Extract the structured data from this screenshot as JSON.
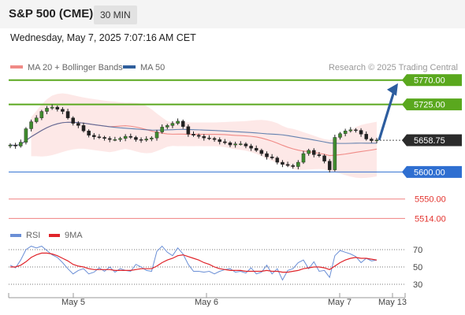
{
  "header": {
    "title": "S&P 500 (CME)",
    "timeframe": "30 MIN"
  },
  "timestamp": "Wednesday, May 7, 2025 7:07:16 AM CET",
  "legend": [
    {
      "label": "MA 20 + Bollinger Bands",
      "color": "#f08a86"
    },
    {
      "label": "MA 50",
      "color": "#2f5f9c"
    }
  ],
  "credit": "Research © 2025 Trading Central",
  "rsi_legend": [
    {
      "label": "RSI",
      "color": "#6b8fd6"
    },
    {
      "label": "9MA",
      "color": "#e0242a"
    }
  ],
  "colors": {
    "resistance": "#5aa81e",
    "support_main": "#2f6fd1",
    "support_minor": "#f08080",
    "current": "#2b2b2b",
    "arrow": "#2d5d9f"
  },
  "chart_data": [
    {
      "type": "candlestick",
      "ylim": [
        5500,
        5790
      ],
      "x": [
        "May 5",
        "May 6",
        "May 7",
        "May 13"
      ],
      "levels": [
        {
          "label": "5770.00",
          "value": 5770,
          "kind": "resistance"
        },
        {
          "label": "5725.00",
          "value": 5725,
          "kind": "resistance"
        },
        {
          "label": "5658.75",
          "value": 5658.75,
          "kind": "current"
        },
        {
          "label": "5600.00",
          "value": 5600,
          "kind": "support_main"
        },
        {
          "label": "5550.00",
          "value": 5550,
          "kind": "support_minor"
        },
        {
          "label": "5514.00",
          "value": 5514,
          "kind": "support_minor"
        }
      ],
      "closes": [
        5650,
        5648,
        5655,
        5680,
        5693,
        5700,
        5712,
        5718,
        5720,
        5716,
        5712,
        5700,
        5690,
        5686,
        5676,
        5668,
        5665,
        5664,
        5662,
        5660,
        5660,
        5662,
        5666,
        5664,
        5660,
        5659,
        5661,
        5663,
        5674,
        5683,
        5686,
        5690,
        5694,
        5684,
        5670,
        5668,
        5666,
        5663,
        5662,
        5660,
        5656,
        5654,
        5650,
        5652,
        5652,
        5648,
        5644,
        5640,
        5634,
        5628,
        5626,
        5618,
        5614,
        5612,
        5610,
        5618,
        5634,
        5640,
        5632,
        5630,
        5620,
        5604,
        5664,
        5671,
        5676,
        5678,
        5677,
        5670,
        5661,
        5658,
        5659
      ]
    },
    {
      "type": "line",
      "title": "RSI",
      "ylim": [
        20,
        80
      ],
      "ticks": [
        70,
        50,
        30
      ],
      "series": [
        {
          "name": "RSI",
          "values": [
            52,
            49,
            58,
            70,
            74,
            72,
            74,
            69,
            64,
            61,
            55,
            48,
            42,
            46,
            48,
            42,
            44,
            49,
            45,
            50,
            44,
            48,
            46,
            45,
            53,
            50,
            46,
            45,
            68,
            74,
            67,
            63,
            72,
            65,
            53,
            45,
            45,
            44,
            45,
            42,
            45,
            47,
            48,
            44,
            45,
            43,
            49,
            42,
            44,
            52,
            42,
            48,
            35,
            46,
            48,
            55,
            58,
            48,
            56,
            45,
            46,
            38,
            63,
            69,
            67,
            65,
            62,
            55,
            60,
            57,
            58
          ]
        },
        {
          "name": "9MA",
          "values": [
            50,
            50,
            52,
            56,
            61,
            64,
            66,
            66,
            65,
            63,
            60,
            57,
            53,
            51,
            50,
            48,
            47,
            47,
            47,
            47,
            46,
            46,
            46,
            46,
            47,
            48,
            48,
            48,
            51,
            55,
            58,
            60,
            63,
            64,
            62,
            60,
            58,
            55,
            53,
            50,
            48,
            47,
            46,
            46,
            46,
            45,
            45,
            45,
            45,
            46,
            45,
            45,
            44,
            44,
            45,
            46,
            48,
            49,
            50,
            50,
            49,
            47,
            51,
            55,
            58,
            60,
            61,
            60,
            60,
            59,
            58
          ]
        }
      ]
    }
  ],
  "x_axis": [
    "May 5",
    "May 6",
    "May 7",
    "May 13"
  ]
}
